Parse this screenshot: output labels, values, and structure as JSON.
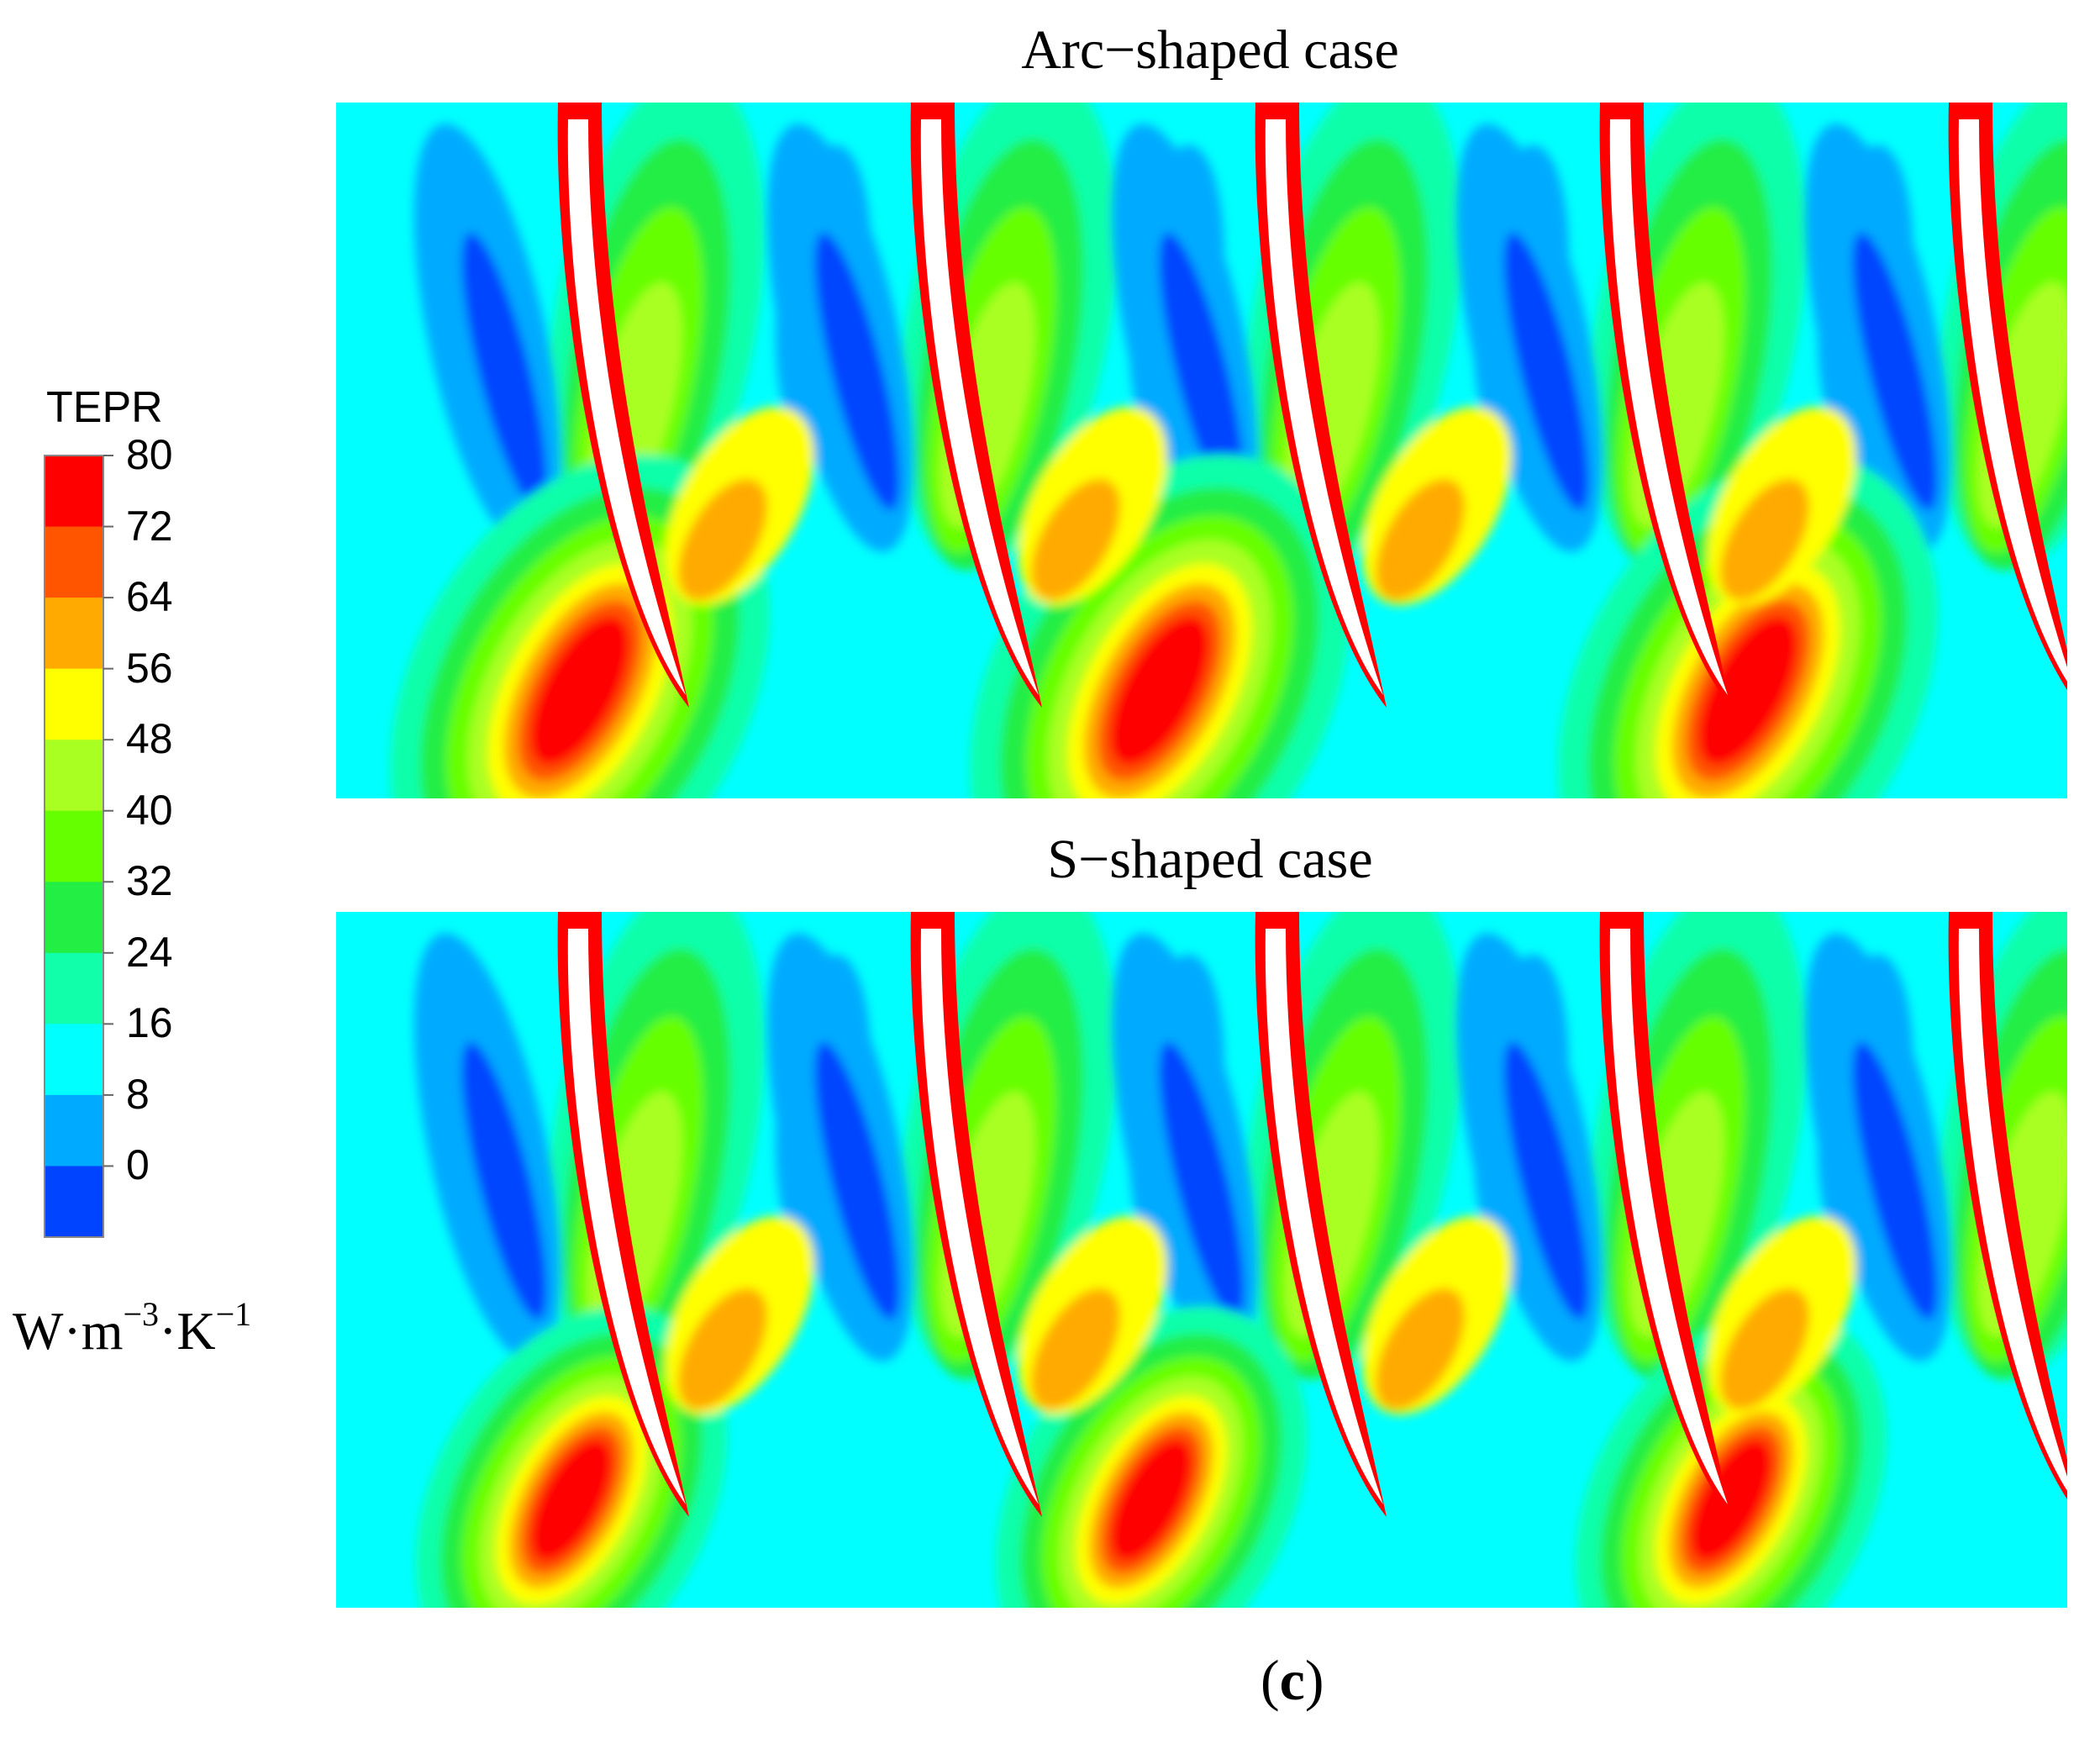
{
  "panels": [
    {
      "title": "Arc−shaped case"
    },
    {
      "title": "S−shaped case"
    }
  ],
  "legend": {
    "title": "TEPR",
    "ticks": [
      "80",
      "72",
      "64",
      "56",
      "48",
      "40",
      "32",
      "24",
      "16",
      "8",
      "0"
    ],
    "band_colors": [
      "#ff0000",
      "#ff5500",
      "#ffaa00",
      "#ffff00",
      "#aaff22",
      "#66ff00",
      "#22ee44",
      "#11ffaa",
      "#00ffff",
      "#00aaff",
      "#0044ff"
    ],
    "units": {
      "base1": "W·m",
      "exp1": "−3",
      "base2": "·K",
      "exp2": "−1"
    }
  },
  "figure_label": {
    "open": "(",
    "letter": "c",
    "close": ")"
  },
  "colors": {
    "blade_edge": "#ff0000",
    "blade_fill": "#ffffff",
    "background_flow": "#00ffff"
  }
}
